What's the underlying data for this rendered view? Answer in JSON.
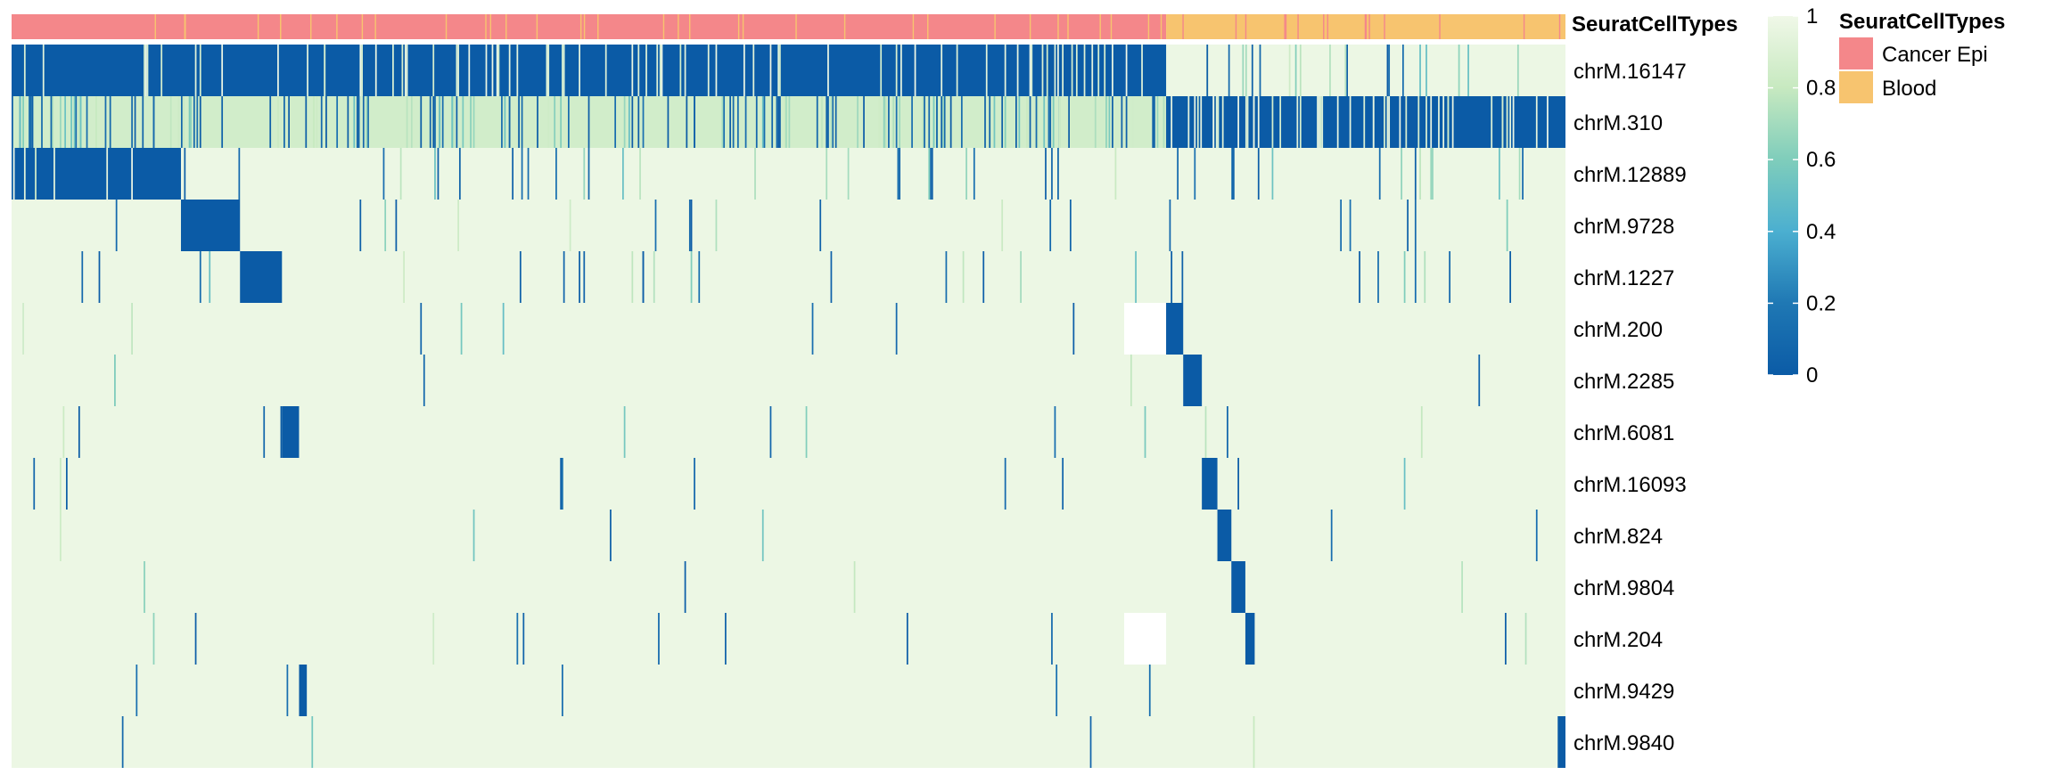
{
  "chart_data": {
    "type": "heatmap",
    "annotation": {
      "name": "SeuratCellTypes",
      "categories": [
        {
          "label": "Cancer Epi",
          "color": "#F4878A",
          "fraction": 0.743
        },
        {
          "label": "Blood",
          "color": "#F7C46F",
          "fraction": 0.257
        }
      ]
    },
    "rows": [
      {
        "label": "chrM.16147",
        "default": 0.0,
        "segments": [
          {
            "from": 0.0,
            "to": 0.743,
            "value": 0.0
          },
          {
            "from": 0.743,
            "to": 1.0,
            "value": 0.98
          }
        ],
        "contrast_density": 0.1
      },
      {
        "label": "chrM.310",
        "default": 0.85,
        "segments": [
          {
            "from": 0.0,
            "to": 0.743,
            "value": 0.85
          },
          {
            "from": 0.743,
            "to": 1.0,
            "value": 0.0
          }
        ],
        "contrast_density": 0.22
      },
      {
        "label": "chrM.12889",
        "default": 0.98,
        "segments": [
          {
            "from": 0.0,
            "to": 0.109,
            "value": 0.0
          }
        ],
        "contrast_density": 0.05
      },
      {
        "label": "chrM.9728",
        "default": 0.98,
        "segments": [
          {
            "from": 0.109,
            "to": 0.147,
            "value": 0.0
          }
        ],
        "contrast_density": 0.02
      },
      {
        "label": "chrM.1227",
        "default": 0.98,
        "segments": [
          {
            "from": 0.147,
            "to": 0.174,
            "value": 0.0
          }
        ],
        "contrast_density": 0.03
      },
      {
        "label": "chrM.200",
        "default": 0.98,
        "segments": [
          {
            "from": 0.716,
            "to": 0.743,
            "value": null
          },
          {
            "from": 0.743,
            "to": 0.754,
            "value": 0.0
          }
        ],
        "contrast_density": 0.008
      },
      {
        "label": "chrM.2285",
        "default": 0.98,
        "segments": [
          {
            "from": 0.754,
            "to": 0.766,
            "value": 0.0
          }
        ],
        "contrast_density": 0.004
      },
      {
        "label": "chrM.6081",
        "default": 0.98,
        "segments": [
          {
            "from": 0.174,
            "to": 0.185,
            "value": 0.0
          }
        ],
        "contrast_density": 0.012
      },
      {
        "label": "chrM.16093",
        "default": 0.98,
        "segments": [
          {
            "from": 0.766,
            "to": 0.776,
            "value": 0.0
          }
        ],
        "contrast_density": 0.01
      },
      {
        "label": "chrM.824",
        "default": 0.98,
        "segments": [
          {
            "from": 0.776,
            "to": 0.785,
            "value": 0.0
          }
        ],
        "contrast_density": 0.006
      },
      {
        "label": "chrM.9804",
        "default": 0.98,
        "segments": [
          {
            "from": 0.785,
            "to": 0.794,
            "value": 0.0
          }
        ],
        "contrast_density": 0.004
      },
      {
        "label": "chrM.204",
        "default": 0.98,
        "segments": [
          {
            "from": 0.716,
            "to": 0.743,
            "value": null
          },
          {
            "from": 0.794,
            "to": 0.8,
            "value": 0.0
          }
        ],
        "contrast_density": 0.012
      },
      {
        "label": "chrM.9429",
        "default": 0.98,
        "segments": [
          {
            "from": 0.185,
            "to": 0.19,
            "value": 0.0
          }
        ],
        "contrast_density": 0.005
      },
      {
        "label": "chrM.9840",
        "default": 0.98,
        "segments": [
          {
            "from": 0.995,
            "to": 1.0,
            "value": 0.0
          }
        ],
        "contrast_density": 0.004
      }
    ],
    "color_scale": {
      "min": 0,
      "max": 1,
      "ticks": [
        {
          "value": 1,
          "label": "1"
        },
        {
          "value": 0.8,
          "label": "0.8"
        },
        {
          "value": 0.6,
          "label": "0.6"
        },
        {
          "value": 0.4,
          "label": "0.4"
        },
        {
          "value": 0.2,
          "label": "0.2"
        },
        {
          "value": 0,
          "label": "0"
        }
      ],
      "stops": [
        {
          "value": 0,
          "color": "#0B5BA6"
        },
        {
          "value": 0.2,
          "color": "#1F78B4"
        },
        {
          "value": 0.4,
          "color": "#4BAFD0"
        },
        {
          "value": 0.6,
          "color": "#7FCDBB"
        },
        {
          "value": 0.8,
          "color": "#C7E9C0"
        },
        {
          "value": 1,
          "color": "#F0F8E8"
        }
      ],
      "na_color": "#FFFFFF"
    },
    "legend": {
      "title": "SeuratCellTypes",
      "items": [
        {
          "label": "Cancer Epi",
          "color": "#F4878A"
        },
        {
          "label": "Blood",
          "color": "#F7C46F"
        }
      ]
    }
  }
}
